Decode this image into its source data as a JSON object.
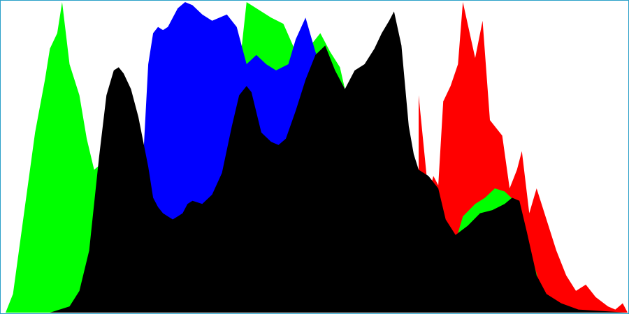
{
  "chart_data": {
    "type": "area",
    "title": "",
    "xlabel": "",
    "ylabel": "",
    "xlim": [
      0,
      255
    ],
    "ylim": [
      0,
      100
    ],
    "grid": false,
    "legend": "none",
    "background": "#ffffff",
    "border_color": "#2aa0c8",
    "series": [
      {
        "color": "#ff0000",
        "points": [
          [
            170,
            70
          ],
          [
            174,
            38
          ],
          [
            176,
            44
          ],
          [
            178,
            41
          ],
          [
            180,
            68
          ],
          [
            183,
            73
          ],
          [
            186,
            80
          ],
          [
            188,
            100
          ],
          [
            193,
            82
          ],
          [
            196,
            94
          ],
          [
            199,
            62
          ],
          [
            204,
            57
          ],
          [
            207,
            40
          ],
          [
            210,
            46
          ],
          [
            212,
            52
          ],
          [
            215,
            32
          ],
          [
            218,
            40
          ],
          [
            222,
            30
          ],
          [
            226,
            20
          ],
          [
            230,
            12
          ],
          [
            234,
            7
          ],
          [
            238,
            9
          ],
          [
            242,
            5
          ],
          [
            247,
            2
          ],
          [
            250,
            1
          ],
          [
            253,
            3
          ],
          [
            255,
            0
          ]
        ]
      },
      {
        "color": "#00ff00",
        "points": [
          [
            0,
            0
          ],
          [
            2,
            0
          ],
          [
            5,
            6
          ],
          [
            10,
            35
          ],
          [
            14,
            58
          ],
          [
            18,
            75
          ],
          [
            20,
            85
          ],
          [
            23,
            90
          ],
          [
            25,
            100
          ],
          [
            28,
            80
          ],
          [
            32,
            70
          ],
          [
            35,
            56
          ],
          [
            38,
            46
          ],
          [
            41,
            48
          ],
          [
            44,
            47
          ],
          [
            48,
            42
          ],
          [
            52,
            38
          ],
          [
            56,
            40
          ],
          [
            60,
            37
          ],
          [
            62,
            34
          ],
          [
            64,
            28
          ],
          [
            66,
            26
          ],
          [
            70,
            27
          ],
          [
            75,
            31
          ],
          [
            80,
            32
          ],
          [
            85,
            38
          ],
          [
            90,
            48
          ],
          [
            95,
            73
          ],
          [
            97,
            78
          ],
          [
            100,
            100
          ],
          [
            110,
            95
          ],
          [
            115,
            93
          ],
          [
            120,
            84
          ],
          [
            125,
            85
          ],
          [
            130,
            90
          ],
          [
            134,
            84
          ],
          [
            138,
            79
          ],
          [
            140,
            72
          ],
          [
            143,
            70
          ],
          [
            147,
            72
          ],
          [
            150,
            69
          ],
          [
            160,
            55
          ],
          [
            167,
            48
          ],
          [
            175,
            33
          ],
          [
            179,
            27
          ],
          [
            182,
            24
          ],
          [
            185,
            23
          ],
          [
            188,
            31
          ],
          [
            193,
            35
          ],
          [
            197,
            37
          ],
          [
            201,
            40
          ],
          [
            205,
            39
          ],
          [
            209,
            36
          ],
          [
            212,
            28
          ],
          [
            216,
            18
          ],
          [
            220,
            7
          ],
          [
            226,
            2
          ],
          [
            235,
            0
          ],
          [
            255,
            0
          ]
        ]
      },
      {
        "color": "#0000ff",
        "points": [
          [
            58,
            50
          ],
          [
            60,
            80
          ],
          [
            62,
            90
          ],
          [
            64,
            92
          ],
          [
            66,
            91
          ],
          [
            68,
            92
          ],
          [
            72,
            98
          ],
          [
            75,
            100
          ],
          [
            78,
            99
          ],
          [
            82,
            96
          ],
          [
            86,
            94
          ],
          [
            92,
            96
          ],
          [
            96,
            92
          ],
          [
            100,
            80
          ],
          [
            104,
            83
          ],
          [
            108,
            80
          ],
          [
            112,
            78
          ],
          [
            117,
            80
          ],
          [
            120,
            88
          ],
          [
            124,
            95
          ],
          [
            128,
            84
          ],
          [
            130,
            80
          ],
          [
            134,
            75
          ]
        ]
      },
      {
        "color": "#000000",
        "points": [
          [
            0,
            0
          ],
          [
            10,
            0
          ],
          [
            20,
            0
          ],
          [
            24,
            1
          ],
          [
            28,
            2
          ],
          [
            32,
            7
          ],
          [
            36,
            20
          ],
          [
            40,
            50
          ],
          [
            43,
            70
          ],
          [
            46,
            78
          ],
          [
            48,
            79
          ],
          [
            50,
            77
          ],
          [
            53,
            72
          ],
          [
            56,
            63
          ],
          [
            60,
            47
          ],
          [
            62,
            37
          ],
          [
            64,
            34
          ],
          [
            66,
            32
          ],
          [
            68,
            31
          ],
          [
            70,
            30
          ],
          [
            72,
            31
          ],
          [
            74,
            32
          ],
          [
            76,
            35
          ],
          [
            78,
            36
          ],
          [
            82,
            35
          ],
          [
            86,
            38
          ],
          [
            90,
            45
          ],
          [
            94,
            60
          ],
          [
            97,
            70
          ],
          [
            100,
            73
          ],
          [
            102,
            71
          ],
          [
            106,
            58
          ],
          [
            110,
            55
          ],
          [
            113,
            54
          ],
          [
            116,
            56
          ],
          [
            120,
            65
          ],
          [
            124,
            75
          ],
          [
            128,
            83
          ],
          [
            132,
            86
          ],
          [
            136,
            78
          ],
          [
            140,
            72
          ],
          [
            144,
            78
          ],
          [
            148,
            80
          ],
          [
            152,
            85
          ],
          [
            155,
            90
          ],
          [
            158,
            94
          ],
          [
            160,
            97
          ],
          [
            163,
            86
          ],
          [
            166,
            60
          ],
          [
            168,
            51
          ],
          [
            170,
            46
          ],
          [
            174,
            44
          ],
          [
            178,
            40
          ],
          [
            181,
            30
          ],
          [
            185,
            25
          ],
          [
            190,
            28
          ],
          [
            195,
            32
          ],
          [
            200,
            33
          ],
          [
            205,
            35
          ],
          [
            208,
            37
          ],
          [
            211,
            36
          ],
          [
            214,
            26
          ],
          [
            218,
            12
          ],
          [
            222,
            6
          ],
          [
            228,
            3
          ],
          [
            235,
            1
          ],
          [
            255,
            0
          ]
        ]
      }
    ]
  }
}
